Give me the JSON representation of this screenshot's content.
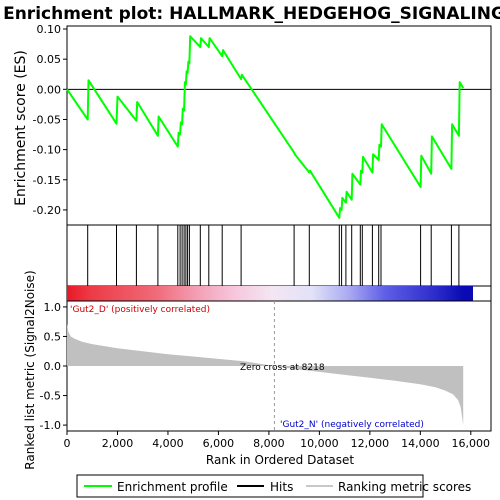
{
  "chart_data": [
    {
      "type": "line",
      "title": "Enrichment plot: HALLMARK_HEDGEHOG_SIGNALING",
      "ylabel": "Enrichment score (ES)",
      "xlim": [
        0,
        16800
      ],
      "ylim": [
        -0.225,
        0.105
      ],
      "yticks": [
        0.1,
        0.05,
        0.0,
        -0.05,
        -0.1,
        -0.15,
        -0.2
      ],
      "ytick_labels": [
        "0.10",
        "0.05",
        "0.00",
        "-0.05",
        "-0.10",
        "-0.15",
        "-0.20"
      ],
      "line_color": "#00ff00",
      "series": [
        {
          "x": [
            0,
            820,
            850,
            1960,
            2000,
            2750,
            2780,
            3600,
            3630,
            4390,
            4420,
            4480,
            4510,
            4560,
            4590,
            4640,
            4670,
            4710,
            4740,
            4780,
            4810,
            4850,
            4880,
            5280,
            5310,
            5620,
            5650,
            6150,
            6180,
            6900,
            6930,
            9000,
            9030,
            9600,
            9630,
            10790,
            10820,
            10880,
            10910,
            11050,
            11080,
            11280,
            11310,
            11620,
            11650,
            11700,
            11730,
            12100,
            12130,
            12350,
            12380,
            12440,
            12470,
            14010,
            14040,
            14430,
            14460,
            15230,
            15260,
            15530,
            15560,
            15700
          ],
          "y": [
            0.0,
            -0.05,
            0.015,
            -0.057,
            -0.012,
            -0.052,
            -0.021,
            -0.077,
            -0.045,
            -0.095,
            -0.072,
            -0.075,
            -0.055,
            -0.058,
            -0.032,
            -0.035,
            0.012,
            0.008,
            0.03,
            0.027,
            0.046,
            0.043,
            0.088,
            0.07,
            0.085,
            0.07,
            0.085,
            0.055,
            0.065,
            0.017,
            0.024,
            -0.105,
            -0.108,
            -0.138,
            -0.135,
            -0.213,
            -0.197,
            -0.2,
            -0.18,
            -0.188,
            -0.17,
            -0.183,
            -0.14,
            -0.158,
            -0.135,
            -0.138,
            -0.112,
            -0.138,
            -0.108,
            -0.117,
            -0.092,
            -0.095,
            -0.058,
            -0.162,
            -0.11,
            -0.14,
            -0.078,
            -0.132,
            -0.058,
            -0.077,
            0.012,
            0.002
          ]
        }
      ]
    },
    {
      "type": "scatter",
      "subtitle": "Hits",
      "hit_color": "#000000",
      "x": [
        820,
        1960,
        2750,
        3600,
        4390,
        4480,
        4560,
        4640,
        4710,
        4780,
        4850,
        5280,
        5620,
        6150,
        6900,
        9000,
        9600,
        10790,
        10880,
        11050,
        11280,
        11620,
        11700,
        12100,
        12350,
        12440,
        14010,
        14430,
        15230,
        15530
      ]
    },
    {
      "type": "heatmap",
      "subtitle": "Ranking metric scores",
      "x_range": [
        0,
        15700
      ],
      "stops": [
        {
          "x": 0,
          "color": "#e81828"
        },
        {
          "x": 900,
          "color": "#ec3a45"
        },
        {
          "x": 3500,
          "color": "#f06a78"
        },
        {
          "x": 5200,
          "color": "#f3a0b6"
        },
        {
          "x": 6600,
          "color": "#f6c6dc"
        },
        {
          "x": 8100,
          "color": "#f4e6f2"
        },
        {
          "x": 9700,
          "color": "#e2e2f8"
        },
        {
          "x": 11200,
          "color": "#a8a8f2"
        },
        {
          "x": 12600,
          "color": "#5e5ee6"
        },
        {
          "x": 14600,
          "color": "#2c2ccc"
        },
        {
          "x": 15700,
          "color": "#0a0ab4"
        }
      ]
    },
    {
      "type": "area",
      "xlabel": "Rank in Ordered Dataset",
      "ylabel": "Ranked list metric (Signal2Noise)",
      "xlim": [
        0,
        16800
      ],
      "ylim": [
        -1.1,
        1.1
      ],
      "xticks": [
        0,
        2000,
        4000,
        6000,
        8000,
        10000,
        12000,
        14000,
        16000
      ],
      "xtick_labels": [
        "0",
        "2,000",
        "4,000",
        "6,000",
        "8,000",
        "10,000",
        "12,000",
        "14,000",
        "16,000"
      ],
      "yticks": [
        1.0,
        0.5,
        0.0,
        -0.5,
        -1.0
      ],
      "ytick_labels": [
        "1.0",
        "0.5",
        "0.0",
        "-0.5",
        "-1.0"
      ],
      "fill_color": "#c0c0c0",
      "x": [
        0,
        50,
        150,
        300,
        600,
        1000,
        2000,
        3000,
        4000,
        5000,
        6000,
        7000,
        8218,
        9000,
        10000,
        11000,
        12000,
        13000,
        14000,
        14600,
        15000,
        15300,
        15500,
        15600,
        15650,
        15700
      ],
      "y": [
        0.72,
        0.58,
        0.5,
        0.46,
        0.41,
        0.37,
        0.3,
        0.25,
        0.2,
        0.16,
        0.12,
        0.08,
        0.0,
        -0.05,
        -0.1,
        -0.15,
        -0.2,
        -0.25,
        -0.31,
        -0.36,
        -0.42,
        -0.48,
        -0.58,
        -0.7,
        -0.85,
        -1.0
      ],
      "annotations": {
        "zero_cross": "Zero cross at 8218",
        "zero_cross_rank": 8218,
        "pos_label": "'Gut2_D' (positively correlated)",
        "neg_label": "'Gut2_N' (negatively correlated)",
        "pos_color": "#cc0000",
        "neg_color": "#0000cc"
      }
    }
  ],
  "legend": {
    "items": [
      {
        "label": "Enrichment profile",
        "color": "#00ff00"
      },
      {
        "label": "Hits",
        "color": "#000000"
      },
      {
        "label": "Ranking metric scores",
        "color": "#c8c8c8"
      }
    ]
  }
}
